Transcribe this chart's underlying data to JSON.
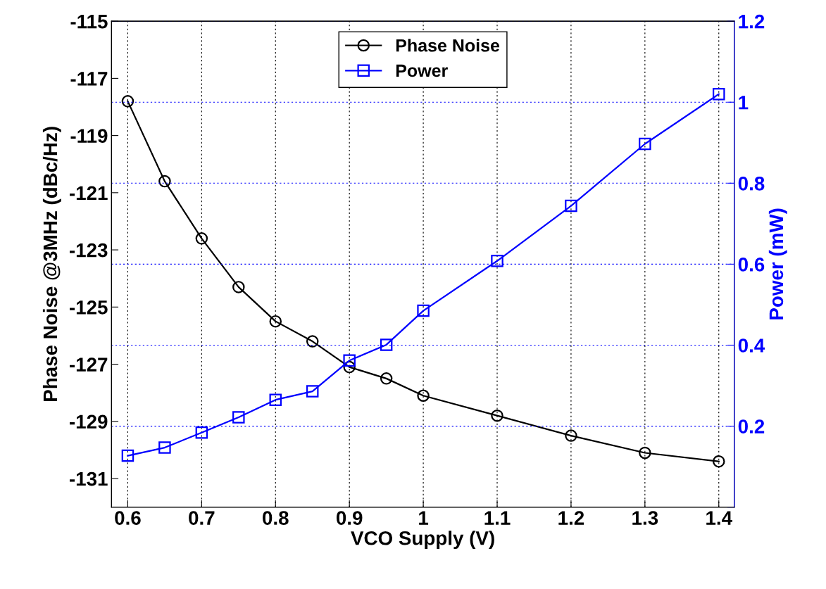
{
  "chart_data": {
    "type": "line",
    "xlabel": "VCO Supply (V)",
    "ylabel": "Phase Noise @3MHz (dBc/Hz)",
    "y2label": "Power (mW)",
    "x": [
      0.6,
      0.65,
      0.7,
      0.75,
      0.8,
      0.85,
      0.9,
      0.95,
      1,
      1.1,
      1.2,
      1.3,
      1.4
    ],
    "series": [
      {
        "name": "Phase Noise",
        "color": "#000000",
        "marker": "circle",
        "values": [
          -117.8,
          -120.6,
          -122.6,
          -124.3,
          -125.5,
          -126.2,
          -127.1,
          -127.5,
          -128.1,
          -128.8,
          -129.5,
          -130.1,
          -130.4
        ]
      },
      {
        "name": "Power",
        "color": "#0000ff",
        "marker": "square",
        "axis": "y2",
        "values": [
          0.127,
          0.147,
          0.184,
          0.222,
          0.265,
          0.286,
          0.362,
          0.401,
          0.485,
          0.608,
          0.744,
          0.897,
          1.02
        ]
      }
    ],
    "xlim": [
      0.578,
      1.421
    ],
    "xticks": [
      0.6,
      0.7,
      0.8,
      0.9,
      1,
      1.1,
      1.2,
      1.3,
      1.4
    ],
    "ylim": [
      -132,
      -115
    ],
    "yticks": [
      -131,
      -129,
      -127,
      -125,
      -123,
      -121,
      -119,
      -117,
      -115
    ],
    "y2lim": [
      0,
      1.2
    ],
    "y2ticks": [
      {
        "value": 0,
        "label": null
      },
      0.2,
      0.4,
      0.6,
      0.8,
      1,
      1.2
    ],
    "grid": true,
    "legend": "top",
    "line_style": "solid"
  }
}
